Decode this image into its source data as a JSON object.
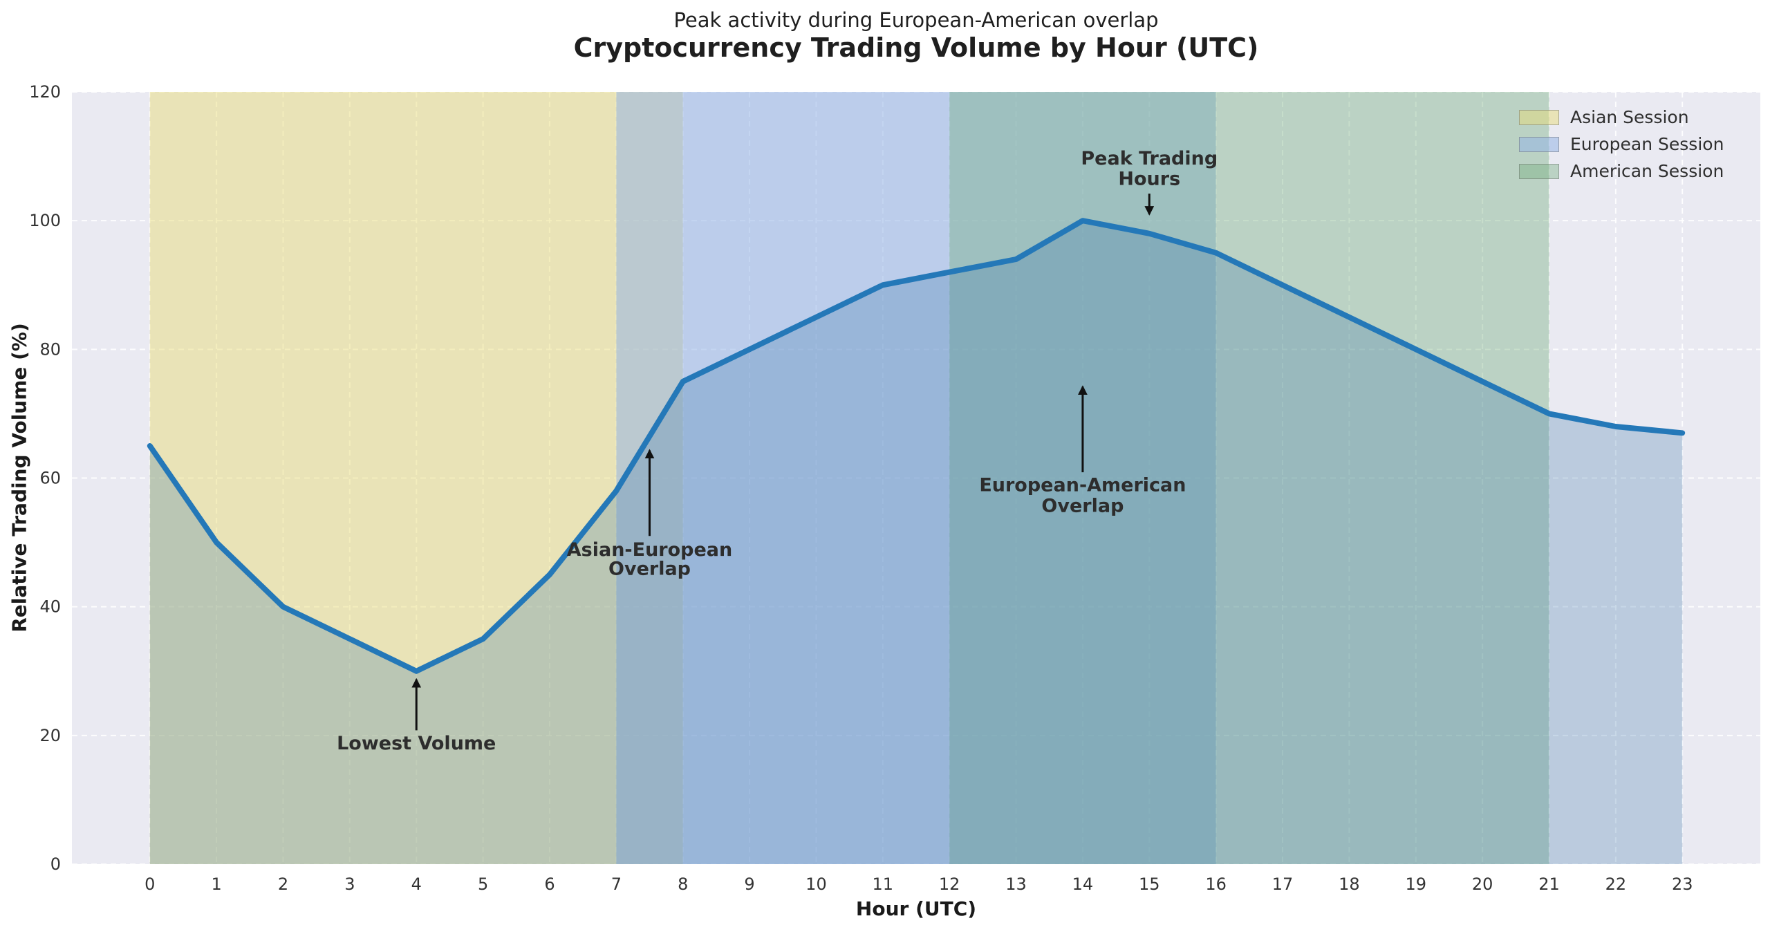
{
  "chart_data": {
    "type": "line",
    "title": "Cryptocurrency Trading Volume by Hour (UTC)",
    "subtitle": "Peak activity during European-American overlap",
    "xlabel": "Hour (UTC)",
    "ylabel": "Relative Trading Volume (%)",
    "x": [
      0,
      1,
      2,
      3,
      4,
      5,
      6,
      7,
      8,
      9,
      10,
      11,
      12,
      13,
      14,
      15,
      16,
      17,
      18,
      19,
      20,
      21,
      22,
      23
    ],
    "values": [
      65,
      50,
      40,
      35,
      30,
      35,
      45,
      58,
      75,
      80,
      85,
      90,
      92,
      94,
      100,
      98,
      95,
      90,
      85,
      80,
      75,
      70,
      68,
      67
    ],
    "xlim": [
      -1.17,
      24.17
    ],
    "ylim": [
      0,
      120
    ],
    "xticks": [
      0,
      1,
      2,
      3,
      4,
      5,
      6,
      7,
      8,
      9,
      10,
      11,
      12,
      13,
      14,
      15,
      16,
      17,
      18,
      19,
      20,
      21,
      22,
      23
    ],
    "yticks": [
      0,
      20,
      40,
      60,
      80,
      100,
      120
    ],
    "grid": "white-dashed",
    "legend_position": "upper-right",
    "colors": {
      "figure_bg": "#ffffff",
      "plot_bg": "#eaeaf2",
      "line": "#2478b8",
      "area_fill": "rgba(64,122,172,0.28)",
      "gridline": "rgba(255,255,255,0.9)",
      "tick_text": "#333333",
      "title_text": "#1f1f1f",
      "annotation_text": "#2d2d2d",
      "arrow": "#111111"
    },
    "sessions": [
      {
        "label": "Asian Session",
        "start": 0,
        "end": 8,
        "color": "rgba(232,220,120,0.48)"
      },
      {
        "label": "European Session",
        "start": 7,
        "end": 16,
        "color": "rgba(150,180,230,0.55)"
      },
      {
        "label": "American Session",
        "start": 12,
        "end": 21,
        "color": "rgba(110,170,120,0.38)"
      }
    ],
    "annotations": [
      {
        "name": "lowest-volume",
        "x": 4,
        "lines": [
          "Lowest Volume"
        ],
        "line_values": [
          18.8
        ],
        "arrow_from": 20.8,
        "arrow_to": 28.7
      },
      {
        "name": "asian-european-overlap",
        "x": 7.5,
        "lines": [
          "Asian-European",
          "Overlap"
        ],
        "line_values": [
          48.9,
          45.9
        ],
        "arrow_from": 51.0,
        "arrow_to": 64.3
      },
      {
        "name": "european-american-overlap",
        "x": 14,
        "lines": [
          "European-American",
          "Overlap"
        ],
        "line_values": [
          58.9,
          55.7
        ],
        "arrow_from": 60.9,
        "arrow_to": 74.2
      },
      {
        "name": "peak-trading-hours",
        "x": 15,
        "lines": [
          "Peak Trading",
          "Hours"
        ],
        "line_values": [
          109.7,
          106.5
        ],
        "arrow_from": 104.2,
        "arrow_to": 101.0
      }
    ]
  }
}
